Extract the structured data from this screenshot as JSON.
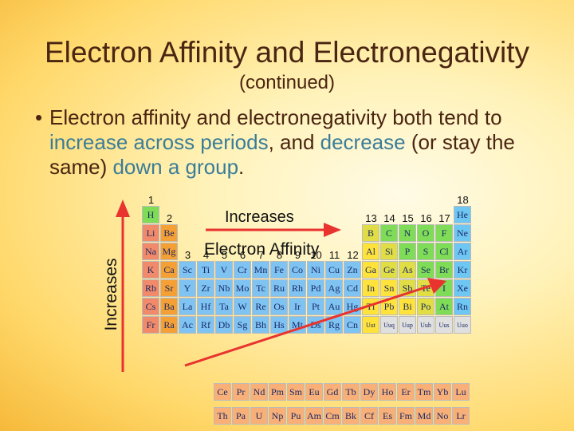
{
  "slide": {
    "title": "Electron Affinity and Electronegativity",
    "subtitle": "(continued)",
    "bullet_dot": "•",
    "bullet": [
      {
        "text": "Electron affinity and electronegativity both tend to ",
        "hl": false
      },
      {
        "text": "increase across periods",
        "hl": true
      },
      {
        "text": ", and ",
        "hl": false
      },
      {
        "text": "decrease",
        "hl": true
      },
      {
        "text": " (or stay the same) ",
        "hl": false
      },
      {
        "text": "down a group",
        "hl": true
      },
      {
        "text": ".",
        "hl": false
      }
    ]
  },
  "periodic_table": {
    "arrow_horizontal_label": "Increases",
    "arrow_vertical_label": "Increases",
    "center_label": "Electron Affinity",
    "group_numbers": [
      {
        "g": 1,
        "label": "1"
      },
      {
        "g": 2,
        "label": "2"
      },
      {
        "g": 3,
        "label": "3"
      },
      {
        "g": 4,
        "label": "4"
      },
      {
        "g": 5,
        "label": "5"
      },
      {
        "g": 6,
        "label": "6"
      },
      {
        "g": 7,
        "label": "7"
      },
      {
        "g": 8,
        "label": "8"
      },
      {
        "g": 9,
        "label": "9"
      },
      {
        "g": 10,
        "label": "10"
      },
      {
        "g": 11,
        "label": "11"
      },
      {
        "g": 12,
        "label": "12"
      },
      {
        "g": 13,
        "label": "13"
      },
      {
        "g": 14,
        "label": "14"
      },
      {
        "g": 15,
        "label": "15"
      },
      {
        "g": 16,
        "label": "16"
      },
      {
        "g": 17,
        "label": "17"
      },
      {
        "g": 18,
        "label": "18"
      }
    ],
    "colors": {
      "alkali": "#f08a6a",
      "alkaline": "#f5a035",
      "transition": "#7ec3f2",
      "post": "#ffe33a",
      "metalloid": "#e0dd45",
      "nonmetal": "#7fdc56",
      "halogen": "#7fdc56",
      "noble": "#6ec6f2",
      "unknown": "#e0e0e0",
      "lanth": "#f8b078",
      "actin": "#f8b078"
    },
    "elements": [
      {
        "s": "H",
        "r": 1,
        "g": 1,
        "t": "nonmetal"
      },
      {
        "s": "He",
        "r": 1,
        "g": 18,
        "t": "noble"
      },
      {
        "s": "Li",
        "r": 2,
        "g": 1,
        "t": "alkali"
      },
      {
        "s": "Be",
        "r": 2,
        "g": 2,
        "t": "alkaline"
      },
      {
        "s": "B",
        "r": 2,
        "g": 13,
        "t": "metalloid"
      },
      {
        "s": "C",
        "r": 2,
        "g": 14,
        "t": "nonmetal"
      },
      {
        "s": "N",
        "r": 2,
        "g": 15,
        "t": "nonmetal"
      },
      {
        "s": "O",
        "r": 2,
        "g": 16,
        "t": "nonmetal"
      },
      {
        "s": "F",
        "r": 2,
        "g": 17,
        "t": "halogen"
      },
      {
        "s": "Ne",
        "r": 2,
        "g": 18,
        "t": "noble"
      },
      {
        "s": "Na",
        "r": 3,
        "g": 1,
        "t": "alkali"
      },
      {
        "s": "Mg",
        "r": 3,
        "g": 2,
        "t": "alkaline"
      },
      {
        "s": "Al",
        "r": 3,
        "g": 13,
        "t": "post"
      },
      {
        "s": "Si",
        "r": 3,
        "g": 14,
        "t": "metalloid"
      },
      {
        "s": "P",
        "r": 3,
        "g": 15,
        "t": "nonmetal"
      },
      {
        "s": "S",
        "r": 3,
        "g": 16,
        "t": "nonmetal"
      },
      {
        "s": "Cl",
        "r": 3,
        "g": 17,
        "t": "halogen"
      },
      {
        "s": "Ar",
        "r": 3,
        "g": 18,
        "t": "noble"
      },
      {
        "s": "K",
        "r": 4,
        "g": 1,
        "t": "alkali"
      },
      {
        "s": "Ca",
        "r": 4,
        "g": 2,
        "t": "alkaline"
      },
      {
        "s": "Sc",
        "r": 4,
        "g": 3,
        "t": "transition"
      },
      {
        "s": "Ti",
        "r": 4,
        "g": 4,
        "t": "transition"
      },
      {
        "s": "V",
        "r": 4,
        "g": 5,
        "t": "transition"
      },
      {
        "s": "Cr",
        "r": 4,
        "g": 6,
        "t": "transition"
      },
      {
        "s": "Mn",
        "r": 4,
        "g": 7,
        "t": "transition"
      },
      {
        "s": "Fe",
        "r": 4,
        "g": 8,
        "t": "transition"
      },
      {
        "s": "Co",
        "r": 4,
        "g": 9,
        "t": "transition"
      },
      {
        "s": "Ni",
        "r": 4,
        "g": 10,
        "t": "transition"
      },
      {
        "s": "Cu",
        "r": 4,
        "g": 11,
        "t": "transition"
      },
      {
        "s": "Zn",
        "r": 4,
        "g": 12,
        "t": "transition"
      },
      {
        "s": "Ga",
        "r": 4,
        "g": 13,
        "t": "post"
      },
      {
        "s": "Ge",
        "r": 4,
        "g": 14,
        "t": "metalloid"
      },
      {
        "s": "As",
        "r": 4,
        "g": 15,
        "t": "metalloid"
      },
      {
        "s": "Se",
        "r": 4,
        "g": 16,
        "t": "nonmetal"
      },
      {
        "s": "Br",
        "r": 4,
        "g": 17,
        "t": "halogen"
      },
      {
        "s": "Kr",
        "r": 4,
        "g": 18,
        "t": "noble"
      },
      {
        "s": "Rb",
        "r": 5,
        "g": 1,
        "t": "alkali"
      },
      {
        "s": "Sr",
        "r": 5,
        "g": 2,
        "t": "alkaline"
      },
      {
        "s": "Y",
        "r": 5,
        "g": 3,
        "t": "transition"
      },
      {
        "s": "Zr",
        "r": 5,
        "g": 4,
        "t": "transition"
      },
      {
        "s": "Nb",
        "r": 5,
        "g": 5,
        "t": "transition"
      },
      {
        "s": "Mo",
        "r": 5,
        "g": 6,
        "t": "transition"
      },
      {
        "s": "Tc",
        "r": 5,
        "g": 7,
        "t": "transition"
      },
      {
        "s": "Ru",
        "r": 5,
        "g": 8,
        "t": "transition"
      },
      {
        "s": "Rh",
        "r": 5,
        "g": 9,
        "t": "transition"
      },
      {
        "s": "Pd",
        "r": 5,
        "g": 10,
        "t": "transition"
      },
      {
        "s": "Ag",
        "r": 5,
        "g": 11,
        "t": "transition"
      },
      {
        "s": "Cd",
        "r": 5,
        "g": 12,
        "t": "transition"
      },
      {
        "s": "In",
        "r": 5,
        "g": 13,
        "t": "post"
      },
      {
        "s": "Sn",
        "r": 5,
        "g": 14,
        "t": "post"
      },
      {
        "s": "Sb",
        "r": 5,
        "g": 15,
        "t": "metalloid"
      },
      {
        "s": "Te",
        "r": 5,
        "g": 16,
        "t": "metalloid"
      },
      {
        "s": "I",
        "r": 5,
        "g": 17,
        "t": "halogen"
      },
      {
        "s": "Xe",
        "r": 5,
        "g": 18,
        "t": "noble"
      },
      {
        "s": "Cs",
        "r": 6,
        "g": 1,
        "t": "alkali"
      },
      {
        "s": "Ba",
        "r": 6,
        "g": 2,
        "t": "alkaline"
      },
      {
        "s": "La",
        "r": 6,
        "g": 3,
        "t": "transition"
      },
      {
        "s": "Hf",
        "r": 6,
        "g": 4,
        "t": "transition"
      },
      {
        "s": "Ta",
        "r": 6,
        "g": 5,
        "t": "transition"
      },
      {
        "s": "W",
        "r": 6,
        "g": 6,
        "t": "transition"
      },
      {
        "s": "Re",
        "r": 6,
        "g": 7,
        "t": "transition"
      },
      {
        "s": "Os",
        "r": 6,
        "g": 8,
        "t": "transition"
      },
      {
        "s": "Ir",
        "r": 6,
        "g": 9,
        "t": "transition"
      },
      {
        "s": "Pt",
        "r": 6,
        "g": 10,
        "t": "transition"
      },
      {
        "s": "Au",
        "r": 6,
        "g": 11,
        "t": "transition"
      },
      {
        "s": "Hg",
        "r": 6,
        "g": 12,
        "t": "transition"
      },
      {
        "s": "Tl",
        "r": 6,
        "g": 13,
        "t": "post"
      },
      {
        "s": "Pb",
        "r": 6,
        "g": 14,
        "t": "post"
      },
      {
        "s": "Bi",
        "r": 6,
        "g": 15,
        "t": "post"
      },
      {
        "s": "Po",
        "r": 6,
        "g": 16,
        "t": "metalloid"
      },
      {
        "s": "At",
        "r": 6,
        "g": 17,
        "t": "halogen"
      },
      {
        "s": "Rn",
        "r": 6,
        "g": 18,
        "t": "noble"
      },
      {
        "s": "Fr",
        "r": 7,
        "g": 1,
        "t": "alkali"
      },
      {
        "s": "Ra",
        "r": 7,
        "g": 2,
        "t": "alkaline"
      },
      {
        "s": "Ac",
        "r": 7,
        "g": 3,
        "t": "transition"
      },
      {
        "s": "Rf",
        "r": 7,
        "g": 4,
        "t": "transition"
      },
      {
        "s": "Db",
        "r": 7,
        "g": 5,
        "t": "transition"
      },
      {
        "s": "Sg",
        "r": 7,
        "g": 6,
        "t": "transition"
      },
      {
        "s": "Bh",
        "r": 7,
        "g": 7,
        "t": "transition"
      },
      {
        "s": "Hs",
        "r": 7,
        "g": 8,
        "t": "transition"
      },
      {
        "s": "Mt",
        "r": 7,
        "g": 9,
        "t": "transition"
      },
      {
        "s": "Ds",
        "r": 7,
        "g": 10,
        "t": "transition"
      },
      {
        "s": "Rg",
        "r": 7,
        "g": 11,
        "t": "transition"
      },
      {
        "s": "Cn",
        "r": 7,
        "g": 12,
        "t": "transition"
      },
      {
        "s": "Uut",
        "r": 7,
        "g": 13,
        "t": "post"
      },
      {
        "s": "Uuq",
        "r": 7,
        "g": 14,
        "t": "unknown"
      },
      {
        "s": "Uup",
        "r": 7,
        "g": 15,
        "t": "unknown"
      },
      {
        "s": "Uuh",
        "r": 7,
        "g": 16,
        "t": "unknown"
      },
      {
        "s": "Uus",
        "r": 7,
        "g": 17,
        "t": "unknown"
      },
      {
        "s": "Uuo",
        "r": 7,
        "g": 18,
        "t": "unknown"
      }
    ],
    "lanthanides": [
      "Ce",
      "Pr",
      "Nd",
      "Pm",
      "Sm",
      "Eu",
      "Gd",
      "Tb",
      "Dy",
      "Ho",
      "Er",
      "Tm",
      "Yb",
      "Lu"
    ],
    "actinides": [
      "Th",
      "Pa",
      "U",
      "Np",
      "Pu",
      "Am",
      "Cm",
      "Bk",
      "Cf",
      "Es",
      "Fm",
      "Md",
      "No",
      "Lr"
    ],
    "arrow_color": "#e8332e"
  }
}
